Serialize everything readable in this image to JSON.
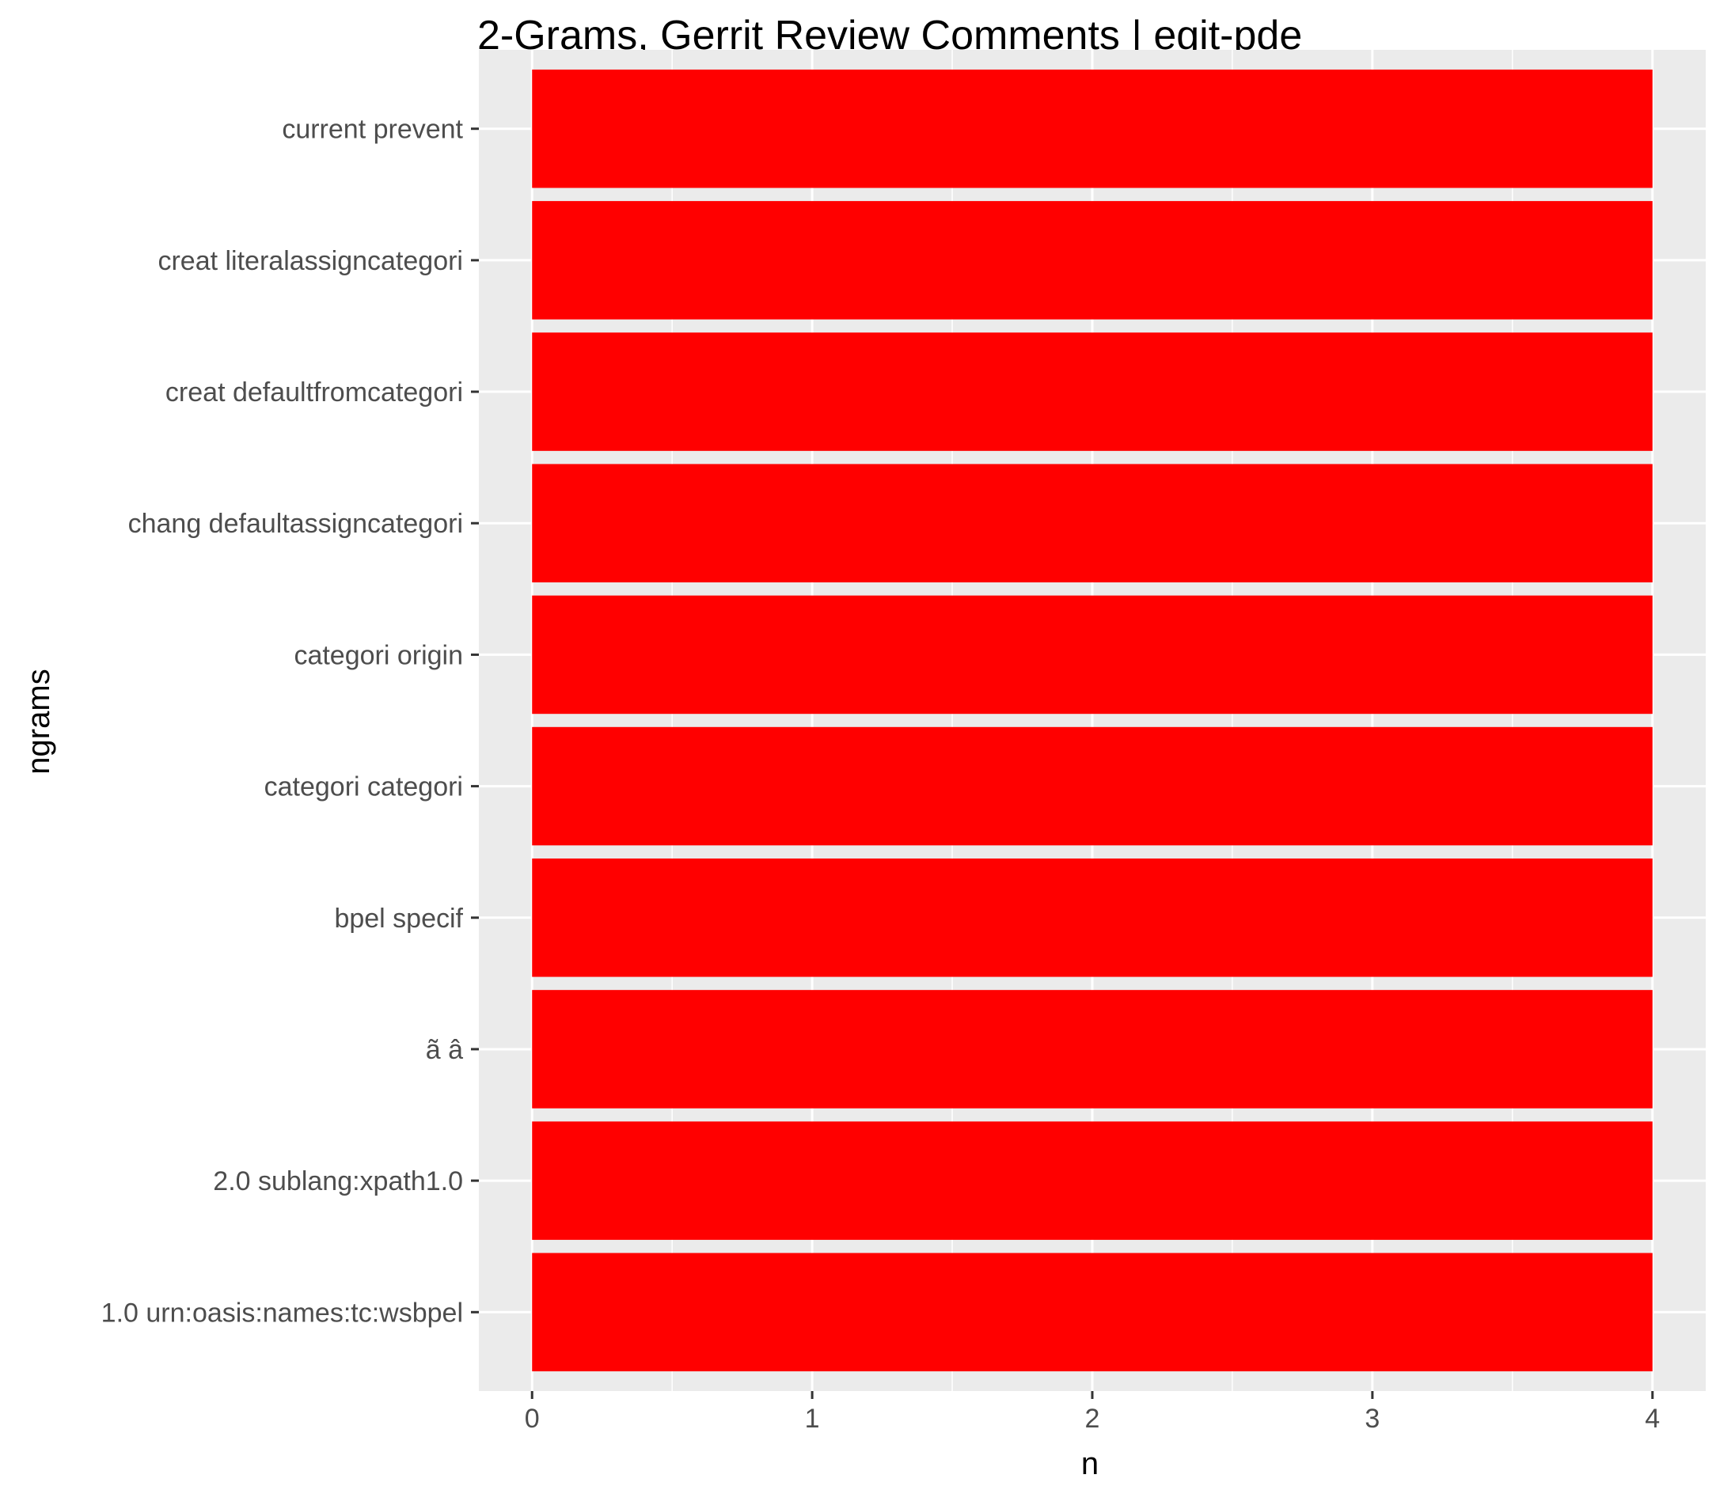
{
  "chart_data": {
    "type": "bar",
    "orientation": "horizontal",
    "title": "2-Grams, Gerrit Review Comments | egit-pde",
    "xlabel": "n",
    "ylabel": "ngrams",
    "categories": [
      "current prevent",
      "creat literalassigncategori",
      "creat defaultfromcategori",
      "chang defaultassigncategori",
      "categori origin",
      "categori categori",
      "bpel specif",
      "ã â",
      "2.0 sublang:xpath1.0",
      "1.0 urn:oasis:names:tc:wsbpel"
    ],
    "values": [
      4,
      4,
      4,
      4,
      4,
      4,
      4,
      4,
      4,
      4
    ],
    "xlim": [
      -0.19,
      4.19
    ],
    "xticks": [
      "0",
      "1",
      "2",
      "3",
      "4"
    ],
    "grid": true,
    "legend": "none",
    "bar_color": "#ff0000",
    "panel_background": "#ebebeb"
  }
}
